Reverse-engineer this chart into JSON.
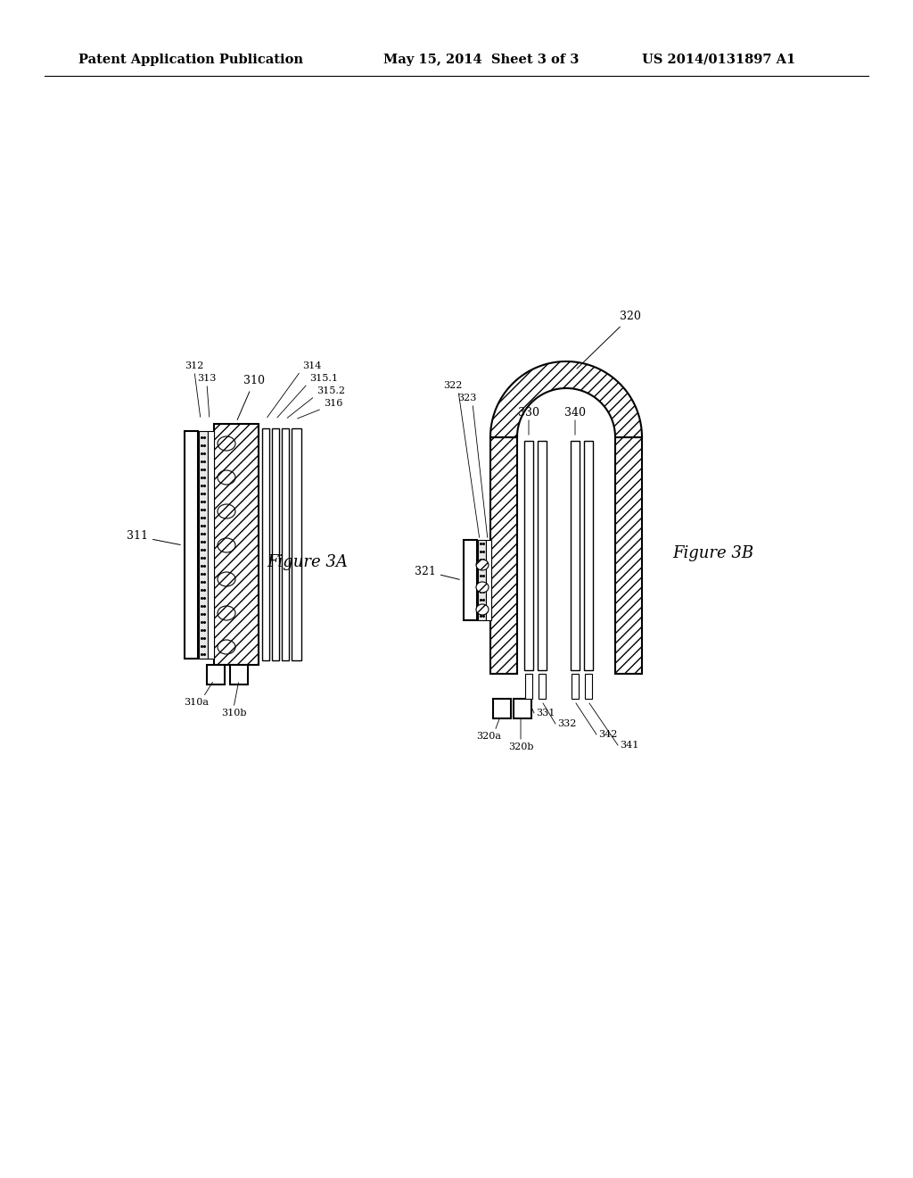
{
  "bg_color": "#ffffff",
  "line_color": "#000000",
  "header_left": "Patent Application Publication",
  "header_center": "May 15, 2014  Sheet 3 of 3",
  "header_right": "US 2014/0131897 A1",
  "fig3a_label": "Figure 3A",
  "fig3b_label": "Figure 3B"
}
